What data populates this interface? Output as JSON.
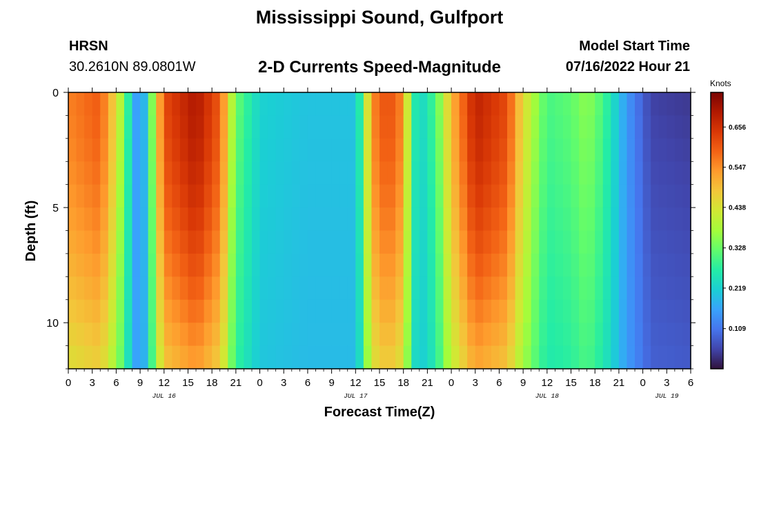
{
  "header": {
    "title": "Mississippi Sound, Gulfport",
    "station_code": "HRSN",
    "station_coords": "30.2610N  89.0801W",
    "subtitle": "2-D Currents Speed-Magnitude",
    "model_label": "Model Start Time",
    "model_time": "07/16/2022 Hour 21"
  },
  "footer": {
    "title": "Mississippi Sound, Gulfport"
  },
  "chart_data": {
    "type": "heatmap",
    "xlabel": "Forecast Time(Z)",
    "ylabel": "Depth (ft)",
    "x_tick_labels": [
      "0",
      "3",
      "6",
      "9",
      "12",
      "15",
      "18",
      "21",
      "0",
      "3",
      "6",
      "9",
      "12",
      "15",
      "18",
      "21",
      "0",
      "3",
      "6",
      "9",
      "12",
      "15",
      "18",
      "21",
      "0",
      "3",
      "6"
    ],
    "date_labels": [
      {
        "label": "JUL 16",
        "hour": 12
      },
      {
        "label": "JUL 17",
        "hour": 36
      },
      {
        "label": "JUL 18",
        "hour": 60
      },
      {
        "label": "JUL 19",
        "hour": 75
      }
    ],
    "x_range_hours": [
      0,
      78
    ],
    "y_ticks": [
      0,
      5,
      10
    ],
    "ylim": [
      0,
      12
    ],
    "y_inverted": true,
    "colorbar": {
      "label": "Knots",
      "ticks": [
        "0.109",
        "0.219",
        "0.328",
        "0.438",
        "0.547",
        "0.656"
      ],
      "range": [
        0.0,
        0.75
      ]
    },
    "depth_levels_ft": [
      0,
      1,
      2,
      3,
      4,
      5,
      6,
      7,
      8,
      9,
      10,
      11,
      12
    ],
    "surface_profile": [
      {
        "hour": 0,
        "speed": 0.56
      },
      {
        "hour": 4,
        "speed": 0.6
      },
      {
        "hour": 6,
        "speed": 0.45
      },
      {
        "hour": 7,
        "speed": 0.35
      },
      {
        "hour": 8,
        "speed": 0.2
      },
      {
        "hour": 9,
        "speed": 0.12
      },
      {
        "hour": 10,
        "speed": 0.25
      },
      {
        "hour": 11,
        "speed": 0.45
      },
      {
        "hour": 12,
        "speed": 0.62
      },
      {
        "hour": 16,
        "speed": 0.7
      },
      {
        "hour": 19,
        "speed": 0.6
      },
      {
        "hour": 21,
        "speed": 0.33
      },
      {
        "hour": 24,
        "speed": 0.22
      },
      {
        "hour": 30,
        "speed": 0.2
      },
      {
        "hour": 36,
        "speed": 0.2
      },
      {
        "hour": 37,
        "speed": 0.33
      },
      {
        "hour": 38,
        "speed": 0.55
      },
      {
        "hour": 40,
        "speed": 0.62
      },
      {
        "hour": 42,
        "speed": 0.55
      },
      {
        "hour": 43,
        "speed": 0.3
      },
      {
        "hour": 44,
        "speed": 0.22
      },
      {
        "hour": 46,
        "speed": 0.3
      },
      {
        "hour": 48,
        "speed": 0.5
      },
      {
        "hour": 51,
        "speed": 0.68
      },
      {
        "hour": 55,
        "speed": 0.62
      },
      {
        "hour": 57,
        "speed": 0.45
      },
      {
        "hour": 60,
        "speed": 0.3
      },
      {
        "hour": 63,
        "speed": 0.32
      },
      {
        "hour": 65,
        "speed": 0.36
      },
      {
        "hour": 67,
        "speed": 0.3
      },
      {
        "hour": 70,
        "speed": 0.15
      },
      {
        "hour": 73,
        "speed": 0.05
      },
      {
        "hour": 78,
        "speed": 0.04
      }
    ]
  },
  "colors": {
    "colormap": [
      "#30123b",
      "#4145ab",
      "#4675ed",
      "#39a2fc",
      "#1bcfd4",
      "#24eca6",
      "#61fc6c",
      "#a4fc3b",
      "#d1e834",
      "#f3c63a",
      "#fe9b2d",
      "#f36315",
      "#d93806",
      "#b11901",
      "#7a0402"
    ]
  }
}
